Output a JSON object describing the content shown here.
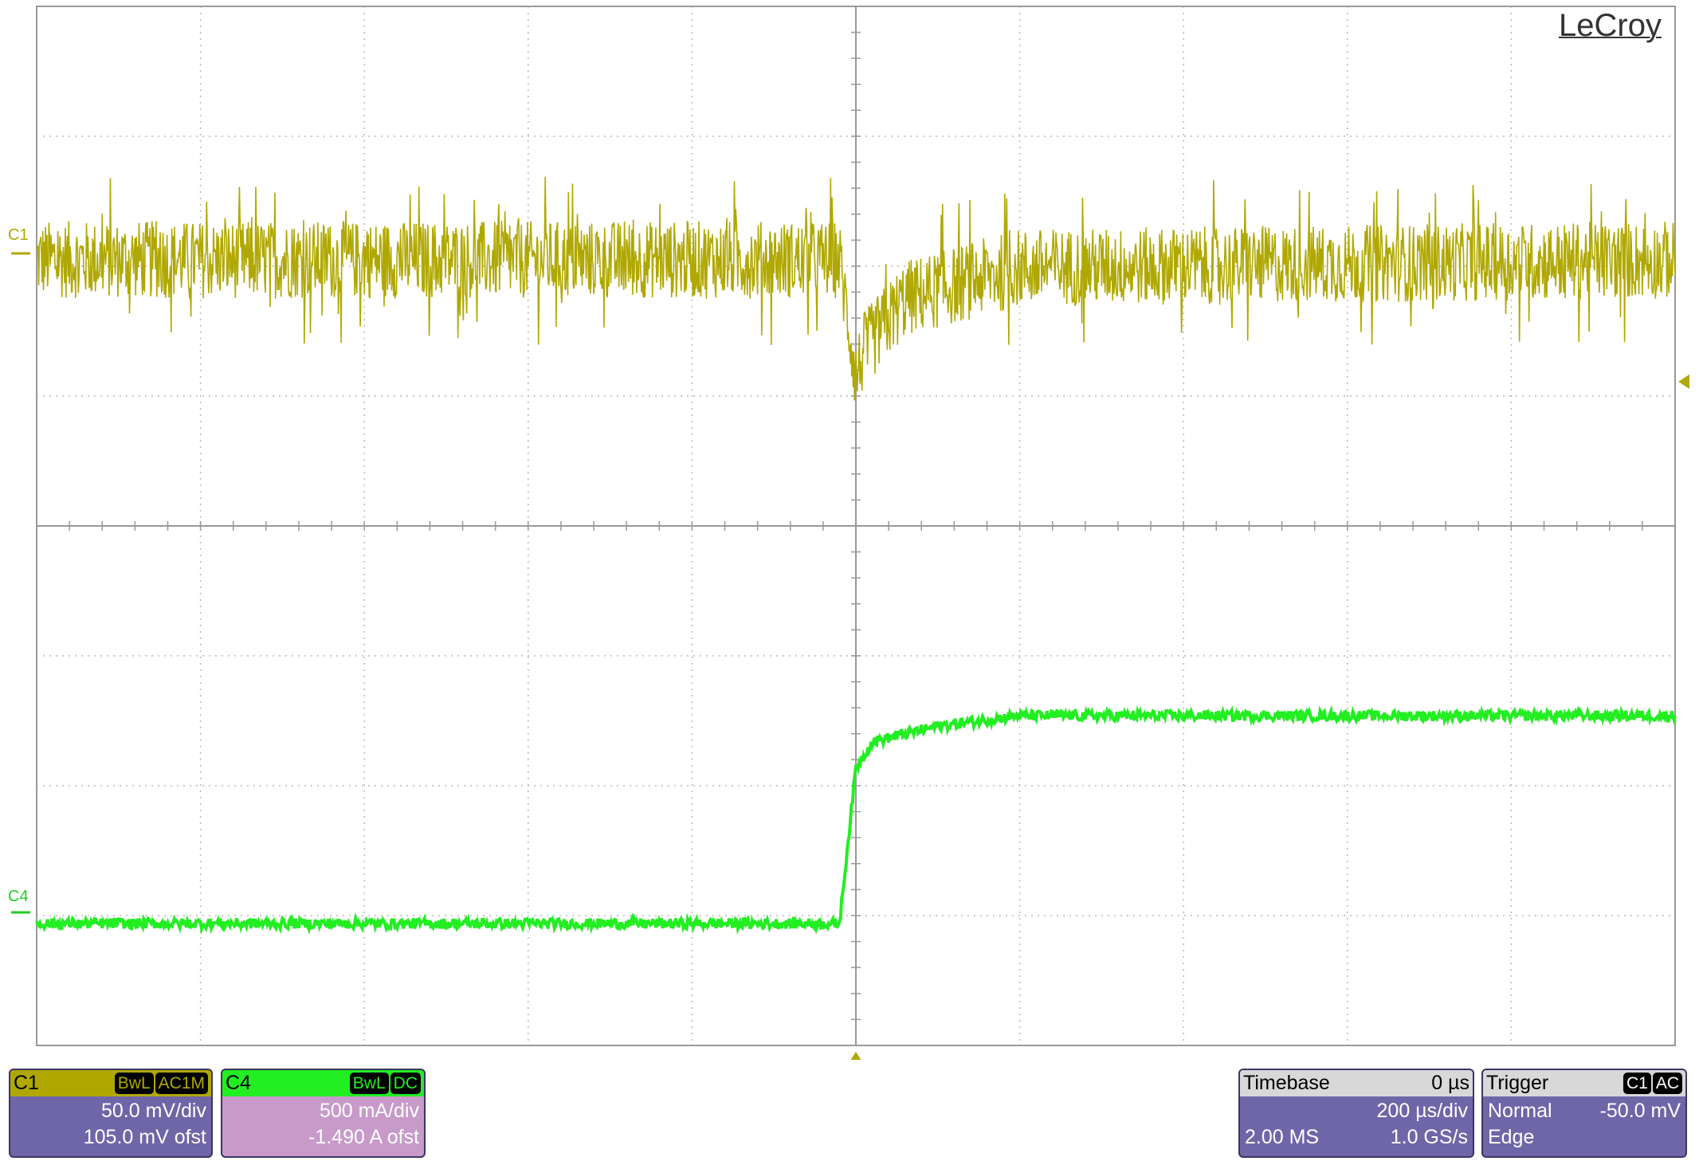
{
  "brand": "LeCroy",
  "colors": {
    "c1": "#b0a800",
    "c4": "#22ee22",
    "grid": "#b8b8b8",
    "panel": "#6f66a8",
    "c4_panel": "#c79ac9"
  },
  "chart_data": {
    "type": "line",
    "x_unit": "µs",
    "xlim": [
      -1000,
      1000
    ],
    "divisions": {
      "horizontal": 10,
      "vertical": 8
    },
    "grid": true,
    "series": [
      {
        "name": "C1",
        "unit": "mV",
        "scale_per_div": 50.0,
        "offset": 105.0,
        "coupling": "AC1M",
        "x": [
          -1000,
          -20,
          0,
          10,
          60,
          200,
          1000
        ],
        "y": [
          0,
          0,
          -45,
          -35,
          -15,
          -3,
          0
        ],
        "noise_pp_mV": 30
      },
      {
        "name": "C4",
        "unit": "A",
        "scale_per_div": 0.5,
        "offset": -1.49,
        "coupling": "DC",
        "x": [
          -1000,
          -20,
          0,
          20,
          100,
          200,
          1000
        ],
        "y": [
          0,
          0,
          0.6,
          0.7,
          0.76,
          0.8,
          0.8
        ],
        "noise_pp_A": 0.04
      }
    ]
  },
  "channels": [
    {
      "label": "C1",
      "badges": [
        "BwL",
        "AC1M"
      ],
      "scale": "50.0 mV/div",
      "offset": "105.0 mV ofst"
    },
    {
      "label": "C4",
      "badges": [
        "BwL",
        "DC"
      ],
      "scale": "500 mA/div",
      "offset": "-1.490 A ofst"
    }
  ],
  "timebase": {
    "title": "Timebase",
    "delay": "0 µs",
    "scale": "200 µs/div",
    "samples": "2.00 MS",
    "rate": "1.0 GS/s"
  },
  "trigger": {
    "title": "Trigger",
    "badges": [
      "C1",
      "AC"
    ],
    "mode": "Normal",
    "level": "-50.0 mV",
    "type": "Edge"
  }
}
